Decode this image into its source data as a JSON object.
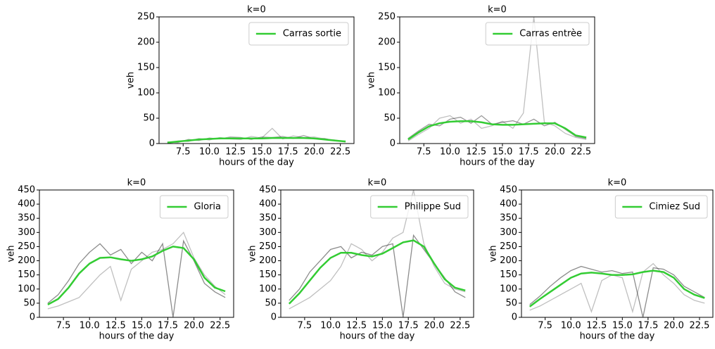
{
  "chart_data": [
    {
      "type": "line",
      "title": "k=0",
      "xlabel": "hours of the day",
      "ylabel": "veh",
      "legend": "upper right",
      "x": [
        6,
        7,
        8,
        9,
        10,
        11,
        12,
        13,
        14,
        15,
        16,
        17,
        18,
        19,
        20,
        21,
        22,
        23
      ],
      "xlim": [
        5.2,
        23.8
      ],
      "xticks": [
        7.5,
        {
          "value": 10,
          "label": "10.0"
        },
        12.5,
        {
          "value": 15,
          "label": "15.0"
        },
        17.5,
        {
          "value": 20,
          "label": "20.0"
        },
        22.5
      ],
      "ylim": [
        0,
        250
      ],
      "yticks": [
        0,
        50,
        100,
        150,
        200,
        250
      ],
      "series": [
        {
          "color": "rgba(0,0,0,0.25)",
          "values": [
            1,
            5,
            4,
            10,
            7,
            12,
            9,
            8,
            14,
            11,
            30,
            9,
            15,
            12,
            13,
            9,
            7,
            3
          ]
        },
        {
          "color": "rgba(0,0,0,0.35)",
          "values": [
            3,
            2,
            8,
            6,
            11,
            9,
            13,
            12,
            8,
            13,
            12,
            14,
            10,
            16,
            9,
            10,
            5,
            5
          ]
        },
        {
          "name": "Carras sortie",
          "color": "#33cc33",
          "values": [
            2,
            4,
            6,
            8,
            9,
            10,
            10,
            10,
            10,
            10,
            11,
            11,
            11,
            11,
            10,
            8,
            6,
            4
          ]
        }
      ]
    },
    {
      "type": "line",
      "title": "k=0",
      "xlabel": "hours of the day",
      "ylabel": "veh",
      "legend": "upper right",
      "x": [
        6,
        7,
        8,
        9,
        10,
        11,
        12,
        13,
        14,
        15,
        16,
        17,
        18,
        19,
        20,
        21,
        22,
        23
      ],
      "xlim": [
        5.2,
        23.8
      ],
      "xticks": [
        7.5,
        {
          "value": 10,
          "label": "10.0"
        },
        12.5,
        {
          "value": 15,
          "label": "15.0"
        },
        17.5,
        {
          "value": 20,
          "label": "20.0"
        },
        22.5
      ],
      "ylim": [
        0,
        250
      ],
      "yticks": [
        0,
        50,
        100,
        150,
        200,
        250
      ],
      "series": [
        {
          "color": "rgba(0,0,0,0.25)",
          "values": [
            5,
            18,
            30,
            50,
            55,
            40,
            48,
            30,
            35,
            44,
            30,
            60,
            250,
            42,
            35,
            20,
            12,
            8
          ]
        },
        {
          "color": "rgba(0,0,0,0.4)",
          "values": [
            10,
            25,
            38,
            35,
            48,
            52,
            40,
            55,
            38,
            42,
            45,
            38,
            48,
            35,
            42,
            28,
            14,
            10
          ]
        },
        {
          "name": "Carras entrèe",
          "color": "#33cc33",
          "values": [
            8,
            22,
            34,
            40,
            43,
            44,
            44,
            42,
            38,
            37,
            37,
            38,
            39,
            40,
            40,
            30,
            16,
            12
          ]
        }
      ]
    },
    {
      "type": "line",
      "title": "k=0",
      "xlabel": "hours of the day",
      "ylabel": "veh",
      "legend": "upper right",
      "x": [
        6,
        7,
        8,
        9,
        10,
        11,
        12,
        13,
        14,
        15,
        16,
        17,
        18,
        19,
        20,
        21,
        22,
        23
      ],
      "xlim": [
        5.2,
        23.8
      ],
      "xticks": [
        7.5,
        {
          "value": 10,
          "label": "10.0"
        },
        12.5,
        {
          "value": 15,
          "label": "15.0"
        },
        17.5,
        {
          "value": 20,
          "label": "20.0"
        },
        22.5
      ],
      "ylim": [
        0,
        450
      ],
      "yticks": [
        0,
        50,
        100,
        150,
        200,
        250,
        300,
        350,
        400,
        450
      ],
      "series": [
        {
          "color": "rgba(0,0,0,0.25)",
          "values": [
            30,
            40,
            55,
            70,
            110,
            150,
            180,
            60,
            170,
            200,
            230,
            240,
            260,
            300,
            210,
            150,
            110,
            80
          ]
        },
        {
          "color": "rgba(0,0,0,0.45)",
          "values": [
            50,
            80,
            130,
            190,
            230,
            260,
            220,
            240,
            190,
            230,
            200,
            260,
            0,
            270,
            200,
            120,
            90,
            70
          ]
        },
        {
          "name": "Gloria",
          "color": "#33cc33",
          "values": [
            45,
            65,
            105,
            155,
            190,
            210,
            212,
            205,
            200,
            205,
            215,
            235,
            250,
            245,
            205,
            140,
            105,
            92
          ]
        }
      ]
    },
    {
      "type": "line",
      "title": "k=0",
      "xlabel": "hours of the day",
      "ylabel": "veh",
      "legend": "upper right",
      "x": [
        6,
        7,
        8,
        9,
        10,
        11,
        12,
        13,
        14,
        15,
        16,
        17,
        18,
        19,
        20,
        21,
        22,
        23
      ],
      "xlim": [
        5.2,
        23.8
      ],
      "xticks": [
        7.5,
        {
          "value": 10,
          "label": "10.0"
        },
        12.5,
        {
          "value": 15,
          "label": "15.0"
        },
        17.5,
        {
          "value": 20,
          "label": "20.0"
        },
        22.5
      ],
      "ylim": [
        0,
        450
      ],
      "yticks": [
        0,
        50,
        100,
        150,
        200,
        250,
        300,
        350,
        400,
        450
      ],
      "series": [
        {
          "color": "rgba(0,0,0,0.25)",
          "values": [
            30,
            50,
            70,
            100,
            130,
            180,
            260,
            240,
            200,
            230,
            280,
            300,
            450,
            260,
            180,
            120,
            100,
            90
          ]
        },
        {
          "color": "rgba(0,0,0,0.45)",
          "values": [
            60,
            100,
            160,
            200,
            240,
            250,
            210,
            230,
            220,
            250,
            260,
            0,
            290,
            240,
            190,
            140,
            90,
            70
          ]
        },
        {
          "name": "Philippe Sud",
          "color": "#33cc33",
          "values": [
            48,
            85,
            130,
            175,
            210,
            228,
            228,
            220,
            215,
            225,
            245,
            265,
            272,
            250,
            190,
            135,
            105,
            95
          ]
        }
      ]
    },
    {
      "type": "line",
      "title": "k=0",
      "xlabel": "hours of the day",
      "ylabel": "veh",
      "legend": "upper right",
      "x": [
        6,
        7,
        8,
        9,
        10,
        11,
        12,
        13,
        14,
        15,
        16,
        17,
        18,
        19,
        20,
        21,
        22,
        23
      ],
      "xlim": [
        5.2,
        23.8
      ],
      "xticks": [
        7.5,
        {
          "value": 10,
          "label": "10.0"
        },
        12.5,
        {
          "value": 15,
          "label": "15.0"
        },
        17.5,
        {
          "value": 20,
          "label": "20.0"
        },
        22.5
      ],
      "ylim": [
        0,
        450
      ],
      "yticks": [
        0,
        50,
        100,
        150,
        200,
        250,
        300,
        350,
        400,
        450
      ],
      "series": [
        {
          "color": "rgba(0,0,0,0.25)",
          "values": [
            25,
            40,
            60,
            80,
            100,
            120,
            20,
            130,
            150,
            140,
            20,
            160,
            190,
            150,
            120,
            80,
            60,
            50
          ]
        },
        {
          "color": "rgba(0,0,0,0.45)",
          "values": [
            45,
            75,
            110,
            140,
            165,
            180,
            170,
            160,
            165,
            155,
            160,
            0,
            175,
            170,
            150,
            110,
            90,
            70
          ]
        },
        {
          "name": "Cimiez Sud",
          "color": "#33cc33",
          "values": [
            38,
            65,
            90,
            115,
            140,
            155,
            158,
            155,
            150,
            150,
            152,
            160,
            165,
            160,
            140,
            100,
            80,
            68
          ]
        }
      ]
    }
  ]
}
